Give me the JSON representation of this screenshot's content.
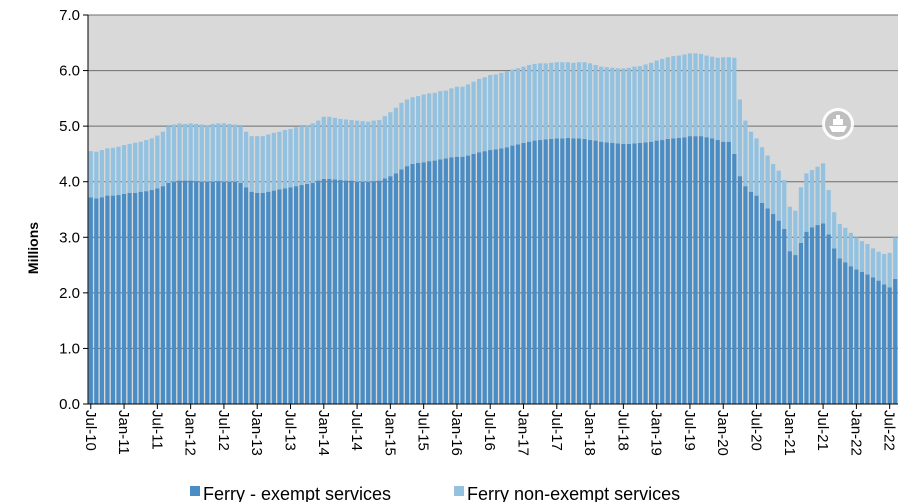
{
  "chart_data": {
    "type": "bar",
    "stacked": true,
    "y_label": "Millions",
    "categories": [
      "Jul-10",
      null,
      null,
      null,
      null,
      null,
      "Jan-11",
      null,
      null,
      null,
      null,
      null,
      "Jul-11",
      null,
      null,
      null,
      null,
      null,
      "Jan-12",
      null,
      null,
      null,
      null,
      null,
      "Jul-12",
      null,
      null,
      null,
      null,
      null,
      "Jan-13",
      null,
      null,
      null,
      null,
      null,
      "Jul-13",
      null,
      null,
      null,
      null,
      null,
      "Jan-14",
      null,
      null,
      null,
      null,
      null,
      "Jul-14",
      null,
      null,
      null,
      null,
      null,
      "Jan-15",
      null,
      null,
      null,
      null,
      null,
      "Jul-15",
      null,
      null,
      null,
      null,
      null,
      "Jan-16",
      null,
      null,
      null,
      null,
      null,
      "Jul-16",
      null,
      null,
      null,
      null,
      null,
      "Jan-17",
      null,
      null,
      null,
      null,
      null,
      "Jul-17",
      null,
      null,
      null,
      null,
      null,
      "Jan-18",
      null,
      null,
      null,
      null,
      null,
      "Jul-18",
      null,
      null,
      null,
      null,
      null,
      "Jan-19",
      null,
      null,
      null,
      null,
      null,
      "Jul-19",
      null,
      null,
      null,
      null,
      null,
      "Jan-20",
      null,
      null,
      null,
      null,
      null,
      "Jul-20",
      null,
      null,
      null,
      null,
      null,
      "Jan-21",
      null,
      null,
      null,
      null,
      null,
      "Jul-21",
      null,
      null,
      null,
      null,
      null,
      "Jan-22",
      null,
      null,
      null,
      null,
      null,
      "Jul-22",
      null
    ],
    "series": [
      {
        "name": "Ferry - exempt services",
        "color": "#4a8cc4",
        "values": [
          3.72,
          3.7,
          3.72,
          3.75,
          3.75,
          3.76,
          3.78,
          3.8,
          3.8,
          3.82,
          3.83,
          3.85,
          3.88,
          3.92,
          3.98,
          4.0,
          4.02,
          4.02,
          4.02,
          4.01,
          4.0,
          4.0,
          4.0,
          4.01,
          4.0,
          4.0,
          4.0,
          3.98,
          3.9,
          3.82,
          3.8,
          3.8,
          3.82,
          3.84,
          3.86,
          3.88,
          3.9,
          3.92,
          3.94,
          3.96,
          3.98,
          4.02,
          4.05,
          4.05,
          4.04,
          4.03,
          4.02,
          4.02,
          4.0,
          4.0,
          4.0,
          4.01,
          4.02,
          4.06,
          4.1,
          4.15,
          4.22,
          4.28,
          4.32,
          4.34,
          4.35,
          4.37,
          4.38,
          4.4,
          4.42,
          4.44,
          4.45,
          4.45,
          4.47,
          4.5,
          4.53,
          4.55,
          4.57,
          4.58,
          4.6,
          4.62,
          4.65,
          4.67,
          4.7,
          4.72,
          4.74,
          4.75,
          4.76,
          4.77,
          4.78,
          4.78,
          4.79,
          4.78,
          4.78,
          4.77,
          4.75,
          4.74,
          4.72,
          4.71,
          4.7,
          4.69,
          4.68,
          4.68,
          4.69,
          4.7,
          4.71,
          4.72,
          4.74,
          4.75,
          4.77,
          4.78,
          4.79,
          4.8,
          4.82,
          4.82,
          4.82,
          4.8,
          4.78,
          4.75,
          4.72,
          4.72,
          4.5,
          4.1,
          3.92,
          3.82,
          3.75,
          3.62,
          3.52,
          3.42,
          3.3,
          3.15,
          2.75,
          2.68,
          2.9,
          3.1,
          3.18,
          3.22,
          3.25,
          3.05,
          2.8,
          2.62,
          2.55,
          2.48,
          2.42,
          2.38,
          2.33,
          2.28,
          2.22,
          2.15,
          2.1,
          2.25
        ]
      },
      {
        "name": "Ferry non-exempt services",
        "color": "#93c1e0",
        "values": [
          0.83,
          0.84,
          0.85,
          0.85,
          0.86,
          0.87,
          0.88,
          0.88,
          0.9,
          0.9,
          0.92,
          0.93,
          0.95,
          0.98,
          1.02,
          1.03,
          1.03,
          1.02,
          1.03,
          1.03,
          1.03,
          1.02,
          1.04,
          1.04,
          1.05,
          1.04,
          1.03,
          1.02,
          1.0,
          1.0,
          1.02,
          1.02,
          1.03,
          1.04,
          1.04,
          1.05,
          1.05,
          1.06,
          1.06,
          1.06,
          1.07,
          1.08,
          1.12,
          1.12,
          1.11,
          1.1,
          1.1,
          1.09,
          1.1,
          1.09,
          1.08,
          1.09,
          1.09,
          1.12,
          1.15,
          1.18,
          1.2,
          1.2,
          1.2,
          1.2,
          1.22,
          1.22,
          1.22,
          1.23,
          1.22,
          1.24,
          1.26,
          1.26,
          1.28,
          1.3,
          1.32,
          1.33,
          1.35,
          1.35,
          1.36,
          1.37,
          1.37,
          1.37,
          1.37,
          1.38,
          1.38,
          1.38,
          1.37,
          1.37,
          1.37,
          1.37,
          1.36,
          1.36,
          1.37,
          1.38,
          1.38,
          1.36,
          1.35,
          1.35,
          1.35,
          1.35,
          1.36,
          1.37,
          1.38,
          1.38,
          1.4,
          1.42,
          1.44,
          1.46,
          1.47,
          1.48,
          1.48,
          1.49,
          1.49,
          1.49,
          1.48,
          1.47,
          1.47,
          1.48,
          1.52,
          1.52,
          1.73,
          1.38,
          1.18,
          1.08,
          1.03,
          1.0,
          0.95,
          0.9,
          0.9,
          0.88,
          0.8,
          0.8,
          1.0,
          1.05,
          1.03,
          1.05,
          1.08,
          0.8,
          0.65,
          0.62,
          0.62,
          0.6,
          0.58,
          0.55,
          0.55,
          0.52,
          0.52,
          0.55,
          0.62,
          0.75
        ]
      }
    ],
    "ylim": [
      0,
      7
    ],
    "yticks": [
      {
        "value": 0,
        "label": "0.0"
      },
      {
        "value": 1,
        "label": "1.0"
      },
      {
        "value": 2,
        "label": "2.0"
      },
      {
        "value": 3,
        "label": "3.0"
      },
      {
        "value": 4,
        "label": "4.0"
      },
      {
        "value": 5,
        "label": "5.0"
      },
      {
        "value": 6,
        "label": "6.0"
      },
      {
        "value": 7,
        "label": "7.0"
      }
    ],
    "grid": true,
    "legend": "bottom"
  }
}
